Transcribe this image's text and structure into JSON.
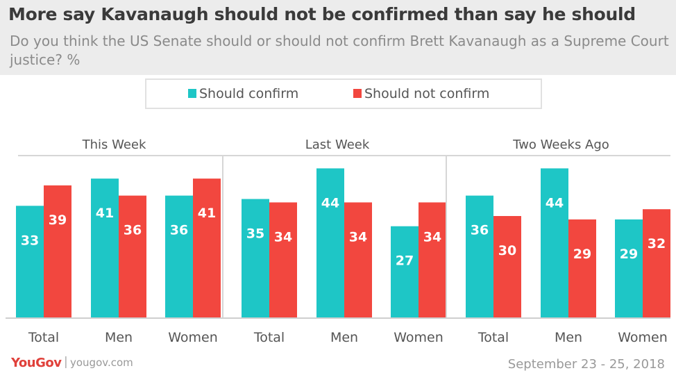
{
  "title": "More say Kavanaugh should not be confirmed than say he should",
  "subtitle": "Do you think the US Senate should or should not confirm Brett Kavanaugh as a Supreme Court justice? %",
  "legend": [
    {
      "label": "Should confirm",
      "color": "#1ec6c6"
    },
    {
      "label": "Should not confirm",
      "color": "#f2473f"
    }
  ],
  "chart_data": {
    "type": "bar",
    "ylim": [
      0,
      50
    ],
    "series": [
      {
        "name": "Should confirm",
        "color": "#1ec6c6"
      },
      {
        "name": "Should not confirm",
        "color": "#f2473f"
      }
    ],
    "panels": [
      {
        "title": "This Week",
        "categories": [
          "Total",
          "Men",
          "Women"
        ],
        "values": [
          [
            33,
            39
          ],
          [
            41,
            36
          ],
          [
            36,
            41
          ]
        ]
      },
      {
        "title": "Last Week",
        "categories": [
          "Total",
          "Men",
          "Women"
        ],
        "values": [
          [
            35,
            34
          ],
          [
            44,
            34
          ],
          [
            27,
            34
          ]
        ]
      },
      {
        "title": "Two Weeks Ago",
        "categories": [
          "Total",
          "Men",
          "Women"
        ],
        "values": [
          [
            36,
            30
          ],
          [
            44,
            29
          ],
          [
            29,
            32
          ]
        ]
      }
    ]
  },
  "footer": {
    "logo": "YouGov",
    "separator": "|",
    "url": "yougov.com",
    "date": "September 23 - 25, 2018"
  }
}
